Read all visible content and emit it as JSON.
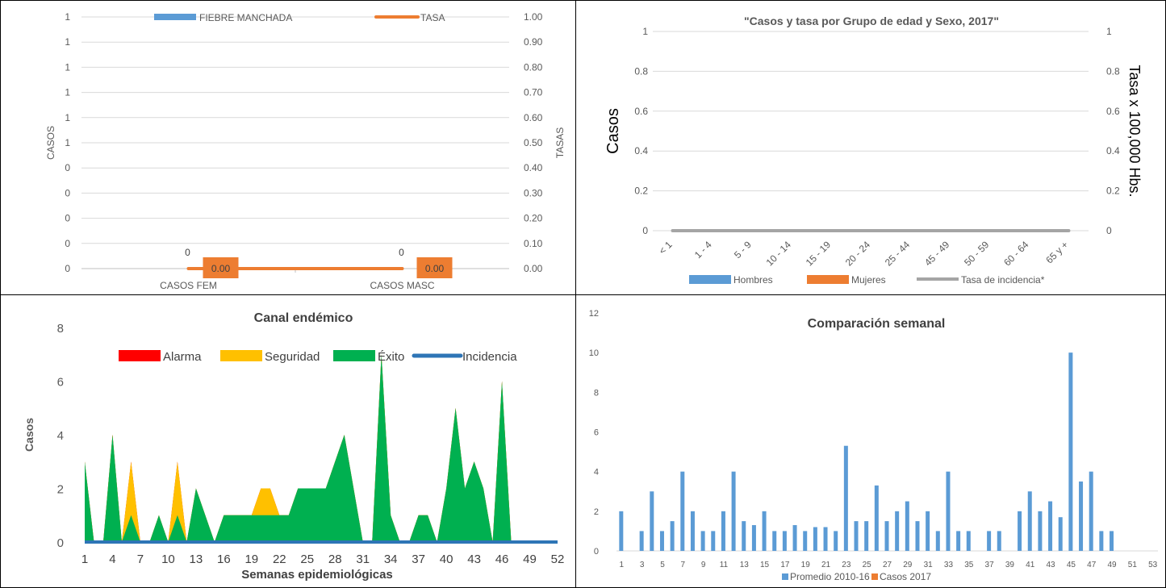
{
  "chart_data": [
    {
      "type": "bar",
      "title": "",
      "categories": [
        "CASOS FEM",
        "CASOS MASC"
      ],
      "series": [
        {
          "name": "FIEBRE MANCHADA",
          "values": [
            0,
            0
          ],
          "color": "#5b9bd5",
          "data_labels": [
            "0",
            "0"
          ]
        },
        {
          "name": "TASA",
          "values": [
            0.0,
            0.0
          ],
          "color": "#ed7d31",
          "data_labels": [
            "0.00",
            "0.00"
          ],
          "axis": "secondary",
          "render": "line"
        }
      ],
      "ylabel": "CASOS",
      "y2label": "TASAS",
      "y_ticks": [
        "0",
        "0",
        "0",
        "0",
        "0",
        "1",
        "1",
        "1",
        "1",
        "1",
        "1"
      ],
      "y2_ticks": [
        "0.00",
        "0.10",
        "0.20",
        "0.30",
        "0.40",
        "0.50",
        "0.60",
        "0.70",
        "0.80",
        "0.90",
        "1.00"
      ],
      "y2lim": [
        0,
        1
      ],
      "legend": "top",
      "grid": true
    },
    {
      "type": "line",
      "title": "\"Casos y tasa por Grupo de edad y Sexo, 2017\"",
      "categories": [
        "< 1",
        "1 - 4",
        "5 - 9",
        "10 - 14",
        "15 - 19",
        "20 - 24",
        "25 - 44",
        "45 - 49",
        "50 - 59",
        "60 - 64",
        "65 y +"
      ],
      "series": [
        {
          "name": "Hombres",
          "values": [
            0,
            0,
            0,
            0,
            0,
            0,
            0,
            0,
            0,
            0,
            0
          ],
          "color": "#5b9bd5"
        },
        {
          "name": "Mujeres",
          "values": [
            0,
            0,
            0,
            0,
            0,
            0,
            0,
            0,
            0,
            0,
            0
          ],
          "color": "#ed7d31"
        },
        {
          "name": "Tasa de incidencia*",
          "values": [
            0,
            0,
            0,
            0,
            0,
            0,
            0,
            0,
            0,
            0,
            0
          ],
          "color": "#a5a5a5",
          "axis": "secondary"
        }
      ],
      "ylabel": "Casos",
      "y2label": "Tasa x 100,000 Hbs.",
      "y_ticks": [
        "0",
        "0.2",
        "0.4",
        "0.6",
        "0.8",
        "1"
      ],
      "y2_ticks": [
        "0",
        "0.2",
        "0.4",
        "0.6",
        "0.8",
        "1"
      ],
      "ylim": [
        0,
        1
      ],
      "y2lim": [
        0,
        1
      ],
      "legend": "bottom",
      "grid": true
    },
    {
      "type": "area",
      "title": "Canal endémico",
      "xlabel": "Semanas epidemiológicas",
      "ylabel": "Casos",
      "x_ticks": [
        "1",
        "4",
        "7",
        "10",
        "13",
        "16",
        "19",
        "22",
        "25",
        "28",
        "31",
        "34",
        "37",
        "40",
        "43",
        "46",
        "49",
        "52"
      ],
      "y_ticks": [
        "0",
        "2",
        "4",
        "6",
        "8"
      ],
      "ylim": [
        0,
        8
      ],
      "x": [
        1,
        2,
        3,
        4,
        5,
        6,
        7,
        8,
        9,
        10,
        11,
        12,
        13,
        14,
        15,
        16,
        17,
        18,
        19,
        20,
        21,
        22,
        23,
        24,
        25,
        26,
        27,
        28,
        29,
        30,
        31,
        32,
        33,
        34,
        35,
        36,
        37,
        38,
        39,
        40,
        41,
        42,
        43,
        44,
        45,
        46,
        47,
        48,
        49,
        50,
        51,
        52
      ],
      "series": [
        {
          "name": "Alarma",
          "color": "#ff0000",
          "values": [
            3,
            0,
            0,
            4,
            0,
            3,
            0,
            0,
            1,
            0,
            3,
            0,
            2,
            1,
            0,
            1,
            1,
            1,
            1,
            2,
            2,
            1,
            1,
            2,
            2,
            2,
            2,
            3,
            4,
            2,
            0,
            0,
            7,
            1,
            0,
            0,
            1,
            1,
            0,
            2,
            5,
            2,
            3,
            2,
            0,
            6,
            0,
            0,
            0,
            0,
            0,
            0
          ]
        },
        {
          "name": "Seguridad",
          "color": "#ffc000",
          "values": [
            3,
            0,
            0,
            4,
            0,
            3,
            0,
            0,
            1,
            0,
            3,
            0,
            2,
            1,
            0,
            1,
            1,
            1,
            1,
            2,
            2,
            1,
            1,
            2,
            2,
            2,
            2,
            3,
            4,
            2,
            0,
            0,
            7,
            1,
            0,
            0,
            1,
            1,
            0,
            2,
            5,
            2,
            3,
            2,
            0,
            6,
            0,
            0,
            0,
            0,
            0,
            0
          ]
        },
        {
          "name": "Éxito",
          "color": "#00b050",
          "values": [
            3,
            0,
            0,
            4,
            0,
            1,
            0,
            0,
            1,
            0,
            1,
            0,
            2,
            1,
            0,
            1,
            1,
            1,
            1,
            1,
            1,
            1,
            1,
            2,
            2,
            2,
            2,
            3,
            4,
            2,
            0,
            0,
            7,
            1,
            0,
            0,
            1,
            1,
            0,
            2,
            5,
            2,
            3,
            2,
            0,
            6,
            0,
            0,
            0,
            0,
            0,
            0
          ]
        },
        {
          "name": "Incidencia",
          "color": "#2e75b6",
          "render": "line",
          "values": [
            0,
            0,
            0,
            0,
            0,
            0,
            0,
            0,
            0,
            0,
            0,
            0,
            0,
            0,
            0,
            0,
            0,
            0,
            0,
            0,
            0,
            0,
            0,
            0,
            0,
            0,
            0,
            0,
            0,
            0,
            0,
            0,
            0,
            0,
            0,
            0,
            0,
            0,
            0,
            0,
            0,
            0,
            0,
            0,
            0,
            0,
            0,
            0,
            0,
            0,
            0,
            0
          ]
        }
      ],
      "legend": "top",
      "grid": false
    },
    {
      "type": "bar",
      "title": "Comparación semanal",
      "x": [
        1,
        2,
        3,
        4,
        5,
        6,
        7,
        8,
        9,
        10,
        11,
        12,
        13,
        14,
        15,
        16,
        17,
        18,
        19,
        20,
        21,
        22,
        23,
        24,
        25,
        26,
        27,
        28,
        29,
        30,
        31,
        32,
        33,
        34,
        35,
        36,
        37,
        38,
        39,
        40,
        41,
        42,
        43,
        44,
        45,
        46,
        47,
        48,
        49,
        50,
        51,
        52,
        53
      ],
      "x_ticks": [
        "1",
        "3",
        "5",
        "7",
        "9",
        "11",
        "13",
        "15",
        "17",
        "19",
        "21",
        "23",
        "25",
        "27",
        "29",
        "31",
        "33",
        "35",
        "37",
        "39",
        "41",
        "43",
        "45",
        "47",
        "49",
        "51",
        "53"
      ],
      "y_ticks": [
        "0",
        "2",
        "4",
        "6",
        "8",
        "10",
        "12"
      ],
      "ylim": [
        0,
        12
      ],
      "series": [
        {
          "name": "Promedio 2010-16",
          "color": "#5b9bd5",
          "values": [
            2,
            0,
            1,
            3,
            1,
            1.5,
            4,
            2,
            1,
            1,
            2,
            4,
            1.5,
            1.3,
            2,
            1,
            1,
            1.3,
            1,
            1.2,
            1.2,
            1,
            5.3,
            1.5,
            1.5,
            3.3,
            1.5,
            2,
            2.5,
            1.5,
            2,
            1,
            4,
            1,
            1,
            0,
            1,
            1,
            0,
            2,
            3,
            2,
            2.5,
            1.7,
            10,
            3.5,
            4,
            1,
            1,
            0,
            0,
            0,
            0
          ]
        },
        {
          "name": "Casos 2017",
          "color": "#ed7d31",
          "values": [
            0,
            0,
            0,
            0,
            0,
            0,
            0,
            0,
            0,
            0,
            0,
            0,
            0,
            0,
            0,
            0,
            0,
            0,
            0,
            0,
            0,
            0,
            0,
            0,
            0,
            0,
            0,
            0,
            0,
            0,
            0,
            0,
            0,
            0,
            0,
            0,
            0,
            0,
            0,
            0,
            0,
            0,
            0,
            0,
            0,
            0,
            0,
            0,
            0,
            0,
            0,
            0,
            0
          ]
        }
      ],
      "legend": "bottom",
      "grid": false
    }
  ]
}
